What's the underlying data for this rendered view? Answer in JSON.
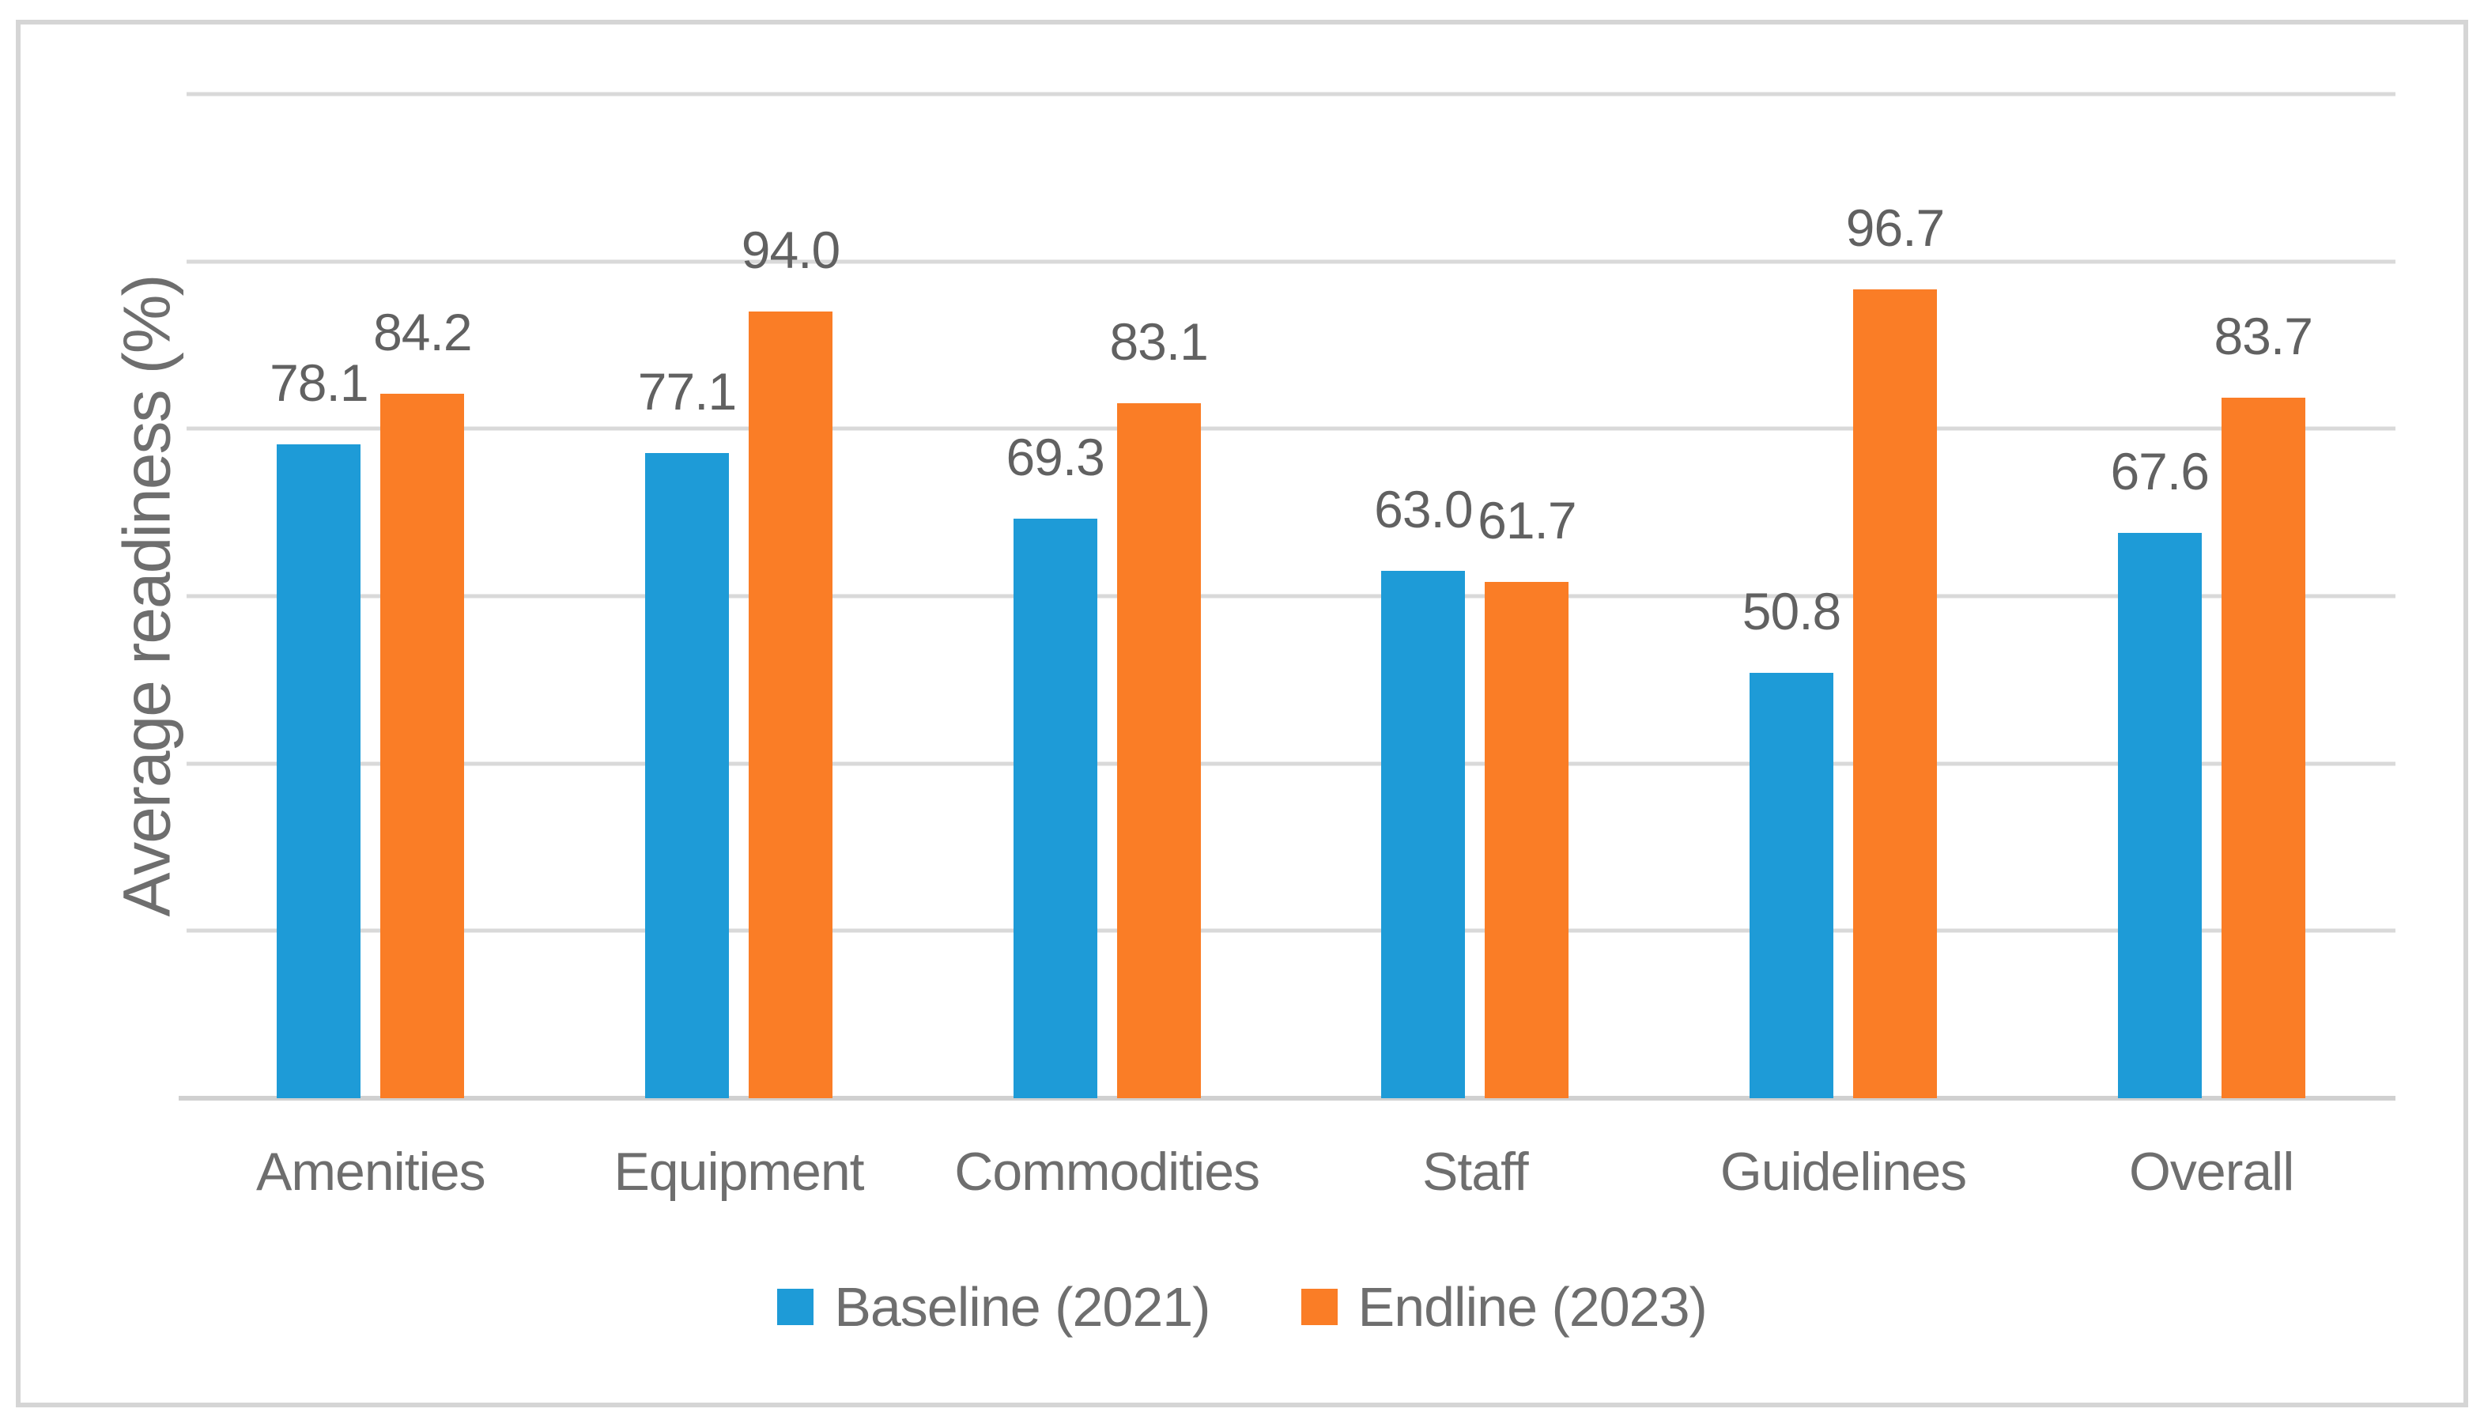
{
  "chart_data": {
    "type": "bar",
    "title": "",
    "categories": [
      "Amenities",
      "Equipment",
      "Commodities",
      "Staff",
      "Guidelines",
      "Overall"
    ],
    "series": [
      {
        "name": "Baseline (2021)",
        "color": "#1E9BD7",
        "values": [
          78.1,
          77.1,
          69.3,
          63.0,
          50.8,
          67.6
        ]
      },
      {
        "name": "Endline (2023)",
        "color": "#FA7D26",
        "values": [
          84.2,
          94.0,
          83.1,
          61.7,
          96.7,
          83.7
        ]
      }
    ],
    "xlabel": "",
    "ylabel": "Average readiness (%)",
    "ylim": [
      0,
      120
    ],
    "gridline_step": 20,
    "grid": true,
    "y_tick_labels_visible": false,
    "data_label_decimals": 1,
    "legend_position": "bottom"
  },
  "colors": {
    "background": "#FFFFFF",
    "frame_border": "#D5D5D5",
    "gridline": "#D9D9D9",
    "axis_line": "#D0D0D0",
    "data_label_text": "#616161",
    "axis_text": "#6E6E6E",
    "series_baseline": "#1E9BD7",
    "series_endline": "#FA7D26"
  }
}
